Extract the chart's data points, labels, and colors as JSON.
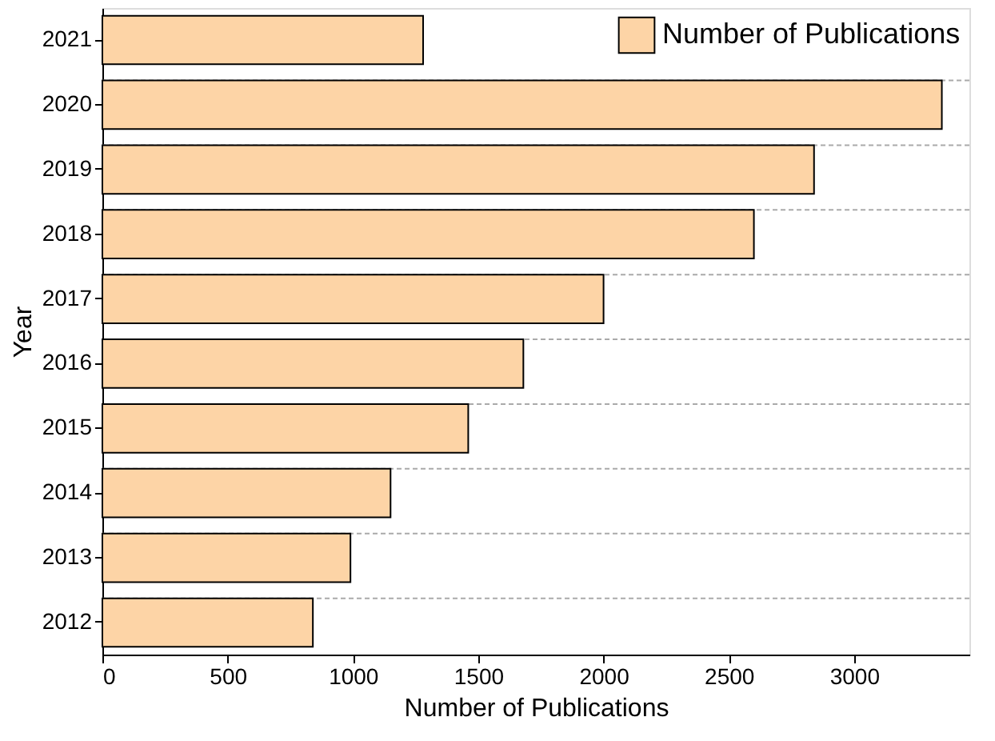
{
  "chart_data": {
    "type": "bar",
    "orientation": "horizontal",
    "xlabel": "Number of Publications",
    "ylabel": "Year",
    "categories": [
      "2021",
      "2020",
      "2019",
      "2018",
      "2017",
      "2016",
      "2015",
      "2014",
      "2013",
      "2012"
    ],
    "series": [
      {
        "name": "Number of Publications",
        "color": "#fdd4a6",
        "values": [
          1280,
          3350,
          2840,
          2600,
          2000,
          1680,
          1460,
          1150,
          990,
          840
        ]
      }
    ],
    "xlim": [
      0,
      3460
    ],
    "xticks": [
      0,
      500,
      1000,
      1500,
      2000,
      2500,
      3000
    ],
    "grid": "y",
    "legend": "top right"
  }
}
